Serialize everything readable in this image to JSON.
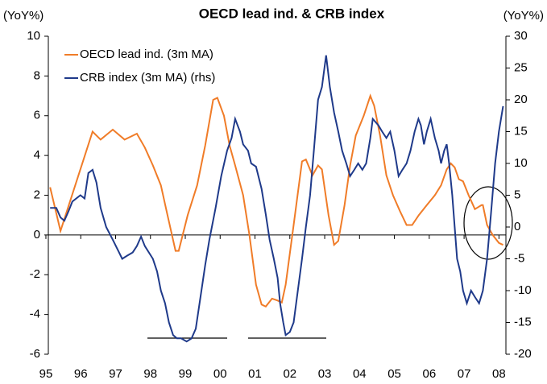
{
  "chart_data": {
    "type": "line",
    "title": "OECD lead ind. & CRB index",
    "y_label": "(YoY%)",
    "y2_label": "(YoY%)",
    "xlim": [
      95.07,
      108.2
    ],
    "ylim": [
      -6,
      10
    ],
    "y2lim": [
      -20,
      30
    ],
    "xticks": [
      95,
      96,
      97,
      98,
      99,
      {
        "value": 100,
        "label": "00"
      },
      {
        "value": 101,
        "label": "01"
      },
      {
        "value": 102,
        "label": "02"
      },
      {
        "value": 103,
        "label": "03"
      },
      {
        "value": 104,
        "label": "04"
      },
      {
        "value": 105,
        "label": "05"
      },
      {
        "value": 106,
        "label": "06"
      },
      {
        "value": 107,
        "label": "07"
      },
      {
        "value": 108,
        "label": "08"
      }
    ],
    "yticks": [
      -6,
      -4,
      -2,
      0,
      2,
      4,
      6,
      8,
      10
    ],
    "y2ticks": [
      -20,
      -15,
      -10,
      -5,
      0,
      5,
      10,
      15,
      20,
      25,
      30
    ],
    "legend": "upper left",
    "series": [
      {
        "name": "OECD lead ind. (3m MA)",
        "color": "#f07c28",
        "x": [
          95.12,
          95.42,
          96.34,
          96.57,
          96.92,
          97.26,
          97.61,
          97.84,
          98.07,
          98.3,
          98.49,
          98.72,
          98.81,
          99.07,
          99.34,
          99.57,
          99.8,
          99.92,
          100.11,
          100.27,
          100.43,
          100.66,
          100.84,
          101.03,
          101.19,
          101.31,
          101.49,
          101.65,
          101.77,
          101.88,
          102.11,
          102.35,
          102.46,
          102.65,
          102.81,
          102.92,
          103.11,
          103.27,
          103.39,
          103.57,
          103.73,
          103.89,
          104.12,
          104.31,
          104.42,
          104.59,
          104.77,
          104.96,
          105.16,
          105.35,
          105.51,
          105.7,
          105.93,
          106.16,
          106.34,
          106.5,
          106.62,
          106.73,
          106.85,
          106.97,
          107.13,
          107.31,
          107.5,
          107.54,
          107.66,
          107.82,
          108.0,
          108.12
        ],
        "values": [
          2.4,
          0.2,
          5.2,
          4.8,
          5.3,
          4.8,
          5.1,
          4.4,
          3.5,
          2.5,
          1.0,
          -0.8,
          -0.8,
          1.0,
          2.5,
          4.5,
          6.8,
          6.9,
          6.0,
          4.5,
          3.5,
          2.0,
          0,
          -2.5,
          -3.5,
          -3.6,
          -3.2,
          -3.3,
          -3.4,
          -2.5,
          0.5,
          3.7,
          3.8,
          3.0,
          3.5,
          3.3,
          1.0,
          -0.5,
          -0.3,
          1.5,
          3.5,
          5.0,
          6.0,
          7.0,
          6.5,
          5.0,
          3.0,
          2.0,
          1.2,
          0.5,
          0.5,
          1.0,
          1.5,
          2.0,
          2.5,
          3.3,
          3.6,
          3.4,
          2.8,
          2.7,
          2.0,
          1.3,
          1.5,
          1.5,
          0.5,
          0,
          -0.4,
          -0.5
        ]
      },
      {
        "name": "CRB index (3m MA) (rhs)",
        "color": "#1f3a8a",
        "axis": "y2",
        "x": [
          95.12,
          95.3,
          95.42,
          95.53,
          95.65,
          95.76,
          95.99,
          96.11,
          96.22,
          96.34,
          96.45,
          96.57,
          96.73,
          96.92,
          97.1,
          97.19,
          97.33,
          97.49,
          97.61,
          97.73,
          97.84,
          98.07,
          98.19,
          98.3,
          98.42,
          98.53,
          98.65,
          98.76,
          98.88,
          99.04,
          99.18,
          99.3,
          99.41,
          99.57,
          99.69,
          99.87,
          100.03,
          100.2,
          100.33,
          100.43,
          100.57,
          100.66,
          100.8,
          100.89,
          101.03,
          101.19,
          101.31,
          101.42,
          101.54,
          101.65,
          101.72,
          101.81,
          101.88,
          102.0,
          102.11,
          102.23,
          102.35,
          102.46,
          102.58,
          102.69,
          102.81,
          102.92,
          103.04,
          103.15,
          103.27,
          103.39,
          103.5,
          103.62,
          103.73,
          103.85,
          103.96,
          104.08,
          104.19,
          104.31,
          104.38,
          104.54,
          104.65,
          104.77,
          104.88,
          105.0,
          105.12,
          105.23,
          105.35,
          105.46,
          105.58,
          105.69,
          105.76,
          105.85,
          105.93,
          106.04,
          106.16,
          106.27,
          106.34,
          106.43,
          106.5,
          106.57,
          106.66,
          106.73,
          106.8,
          106.89,
          106.97,
          107.08,
          107.2,
          107.31,
          107.43,
          107.54,
          107.66,
          107.77,
          107.89,
          108.0,
          108.12
        ],
        "values": [
          3,
          3,
          1.5,
          1,
          2.5,
          4,
          5,
          4.5,
          8.5,
          9,
          7,
          3,
          0,
          -2,
          -4,
          -5,
          -4.5,
          -4,
          -3,
          -1.5,
          -3,
          -5,
          -7,
          -10,
          -12,
          -15,
          -17,
          -17.5,
          -17.5,
          -18,
          -17.5,
          -16,
          -12,
          -6,
          -2,
          3,
          8,
          12,
          14,
          17,
          15,
          13,
          12,
          10,
          9.5,
          6,
          2,
          -2,
          -5,
          -8,
          -12,
          -15,
          -17,
          -16.5,
          -15,
          -10,
          -5,
          0,
          5,
          12,
          20,
          22,
          27,
          22,
          18,
          15,
          12,
          10,
          8,
          9,
          10,
          9,
          10,
          14,
          17,
          16,
          15,
          14,
          15,
          12,
          8,
          9,
          10,
          12,
          15,
          17,
          16,
          13,
          15,
          17,
          14,
          12,
          10,
          12,
          13,
          10,
          5,
          0,
          -5,
          -7,
          -10,
          -12,
          -10,
          -11,
          -12,
          -10,
          -5,
          2,
          10,
          15,
          19
        ]
      }
    ]
  }
}
